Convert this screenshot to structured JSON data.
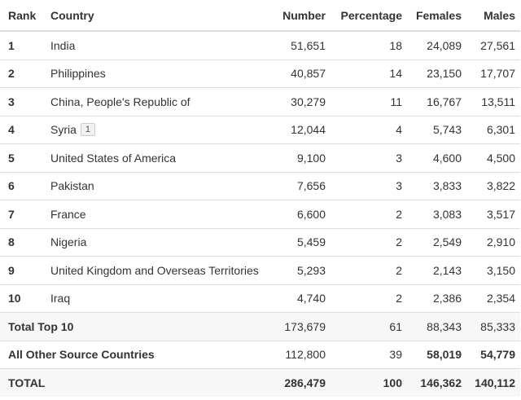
{
  "columns": {
    "rank": "Rank",
    "country": "Country",
    "number": "Number",
    "percentage": "Percentage",
    "females": "Females",
    "males": "Males"
  },
  "rows": [
    {
      "rank": "1",
      "country": "India",
      "number": "51,651",
      "percentage": "18",
      "females": "24,089",
      "males": "27,561"
    },
    {
      "rank": "2",
      "country": "Philippines",
      "number": "40,857",
      "percentage": "14",
      "females": "23,150",
      "males": "17,707"
    },
    {
      "rank": "3",
      "country": "China, People's Republic of",
      "number": "30,279",
      "percentage": "11",
      "females": "16,767",
      "males": "13,511"
    },
    {
      "rank": "4",
      "country": "Syria",
      "footnote": "1",
      "number": "12,044",
      "percentage": "4",
      "females": "5,743",
      "males": "6,301"
    },
    {
      "rank": "5",
      "country": "United States of America",
      "number": "9,100",
      "percentage": "3",
      "females": "4,600",
      "males": "4,500"
    },
    {
      "rank": "6",
      "country": "Pakistan",
      "number": "7,656",
      "percentage": "3",
      "females": "3,833",
      "males": "3,822"
    },
    {
      "rank": "7",
      "country": "France",
      "number": "6,600",
      "percentage": "2",
      "females": "3,083",
      "males": "3,517"
    },
    {
      "rank": "8",
      "country": "Nigeria",
      "number": "5,459",
      "percentage": "2",
      "females": "2,549",
      "males": "2,910"
    },
    {
      "rank": "9",
      "country": "United Kingdom and Overseas Territories",
      "number": "5,293",
      "percentage": "2",
      "females": "2,143",
      "males": "3,150"
    },
    {
      "rank": "10",
      "country": "Iraq",
      "number": "4,740",
      "percentage": "2",
      "females": "2,386",
      "males": "2,354"
    }
  ],
  "total_top10": {
    "label": "Total Top 10",
    "number": "173,679",
    "percentage": "61",
    "females": "88,343",
    "males": "85,333"
  },
  "other": {
    "label": "All Other Source Countries",
    "number": "112,800",
    "percentage": "39",
    "females": "58,019",
    "males": "54,779"
  },
  "grand_total": {
    "label": "TOTAL",
    "number": "286,479",
    "percentage": "100",
    "females": "146,362",
    "males": "140,112"
  }
}
